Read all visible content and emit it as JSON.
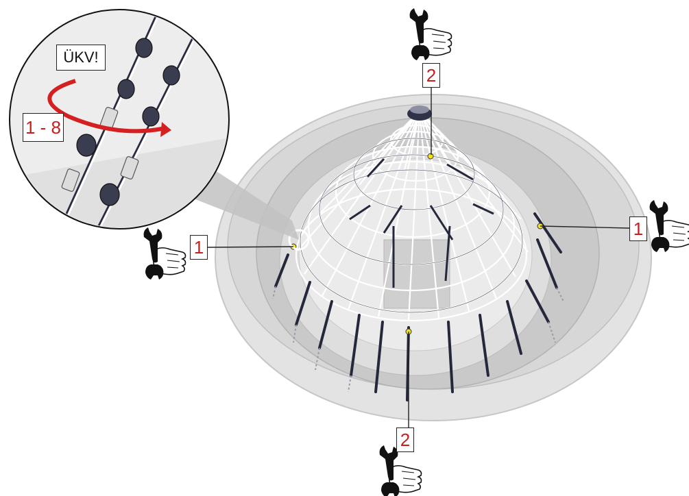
{
  "diagram": {
    "callouts": {
      "top": "2",
      "right": "1",
      "left": "1",
      "bottom": "2"
    },
    "zoom_detail": {
      "warning_label": "ÜKV!",
      "range_label": "1 - 8"
    },
    "colors": {
      "accent_red": "#c81e1e",
      "marker_yellow": "#f2e21a",
      "net_dark": "#25273a",
      "basin_grey": "#d6d6d6"
    },
    "icons": [
      "wrench-hand-icon",
      "rotation-arrow-icon",
      "shackle-detail-icon"
    ]
  }
}
